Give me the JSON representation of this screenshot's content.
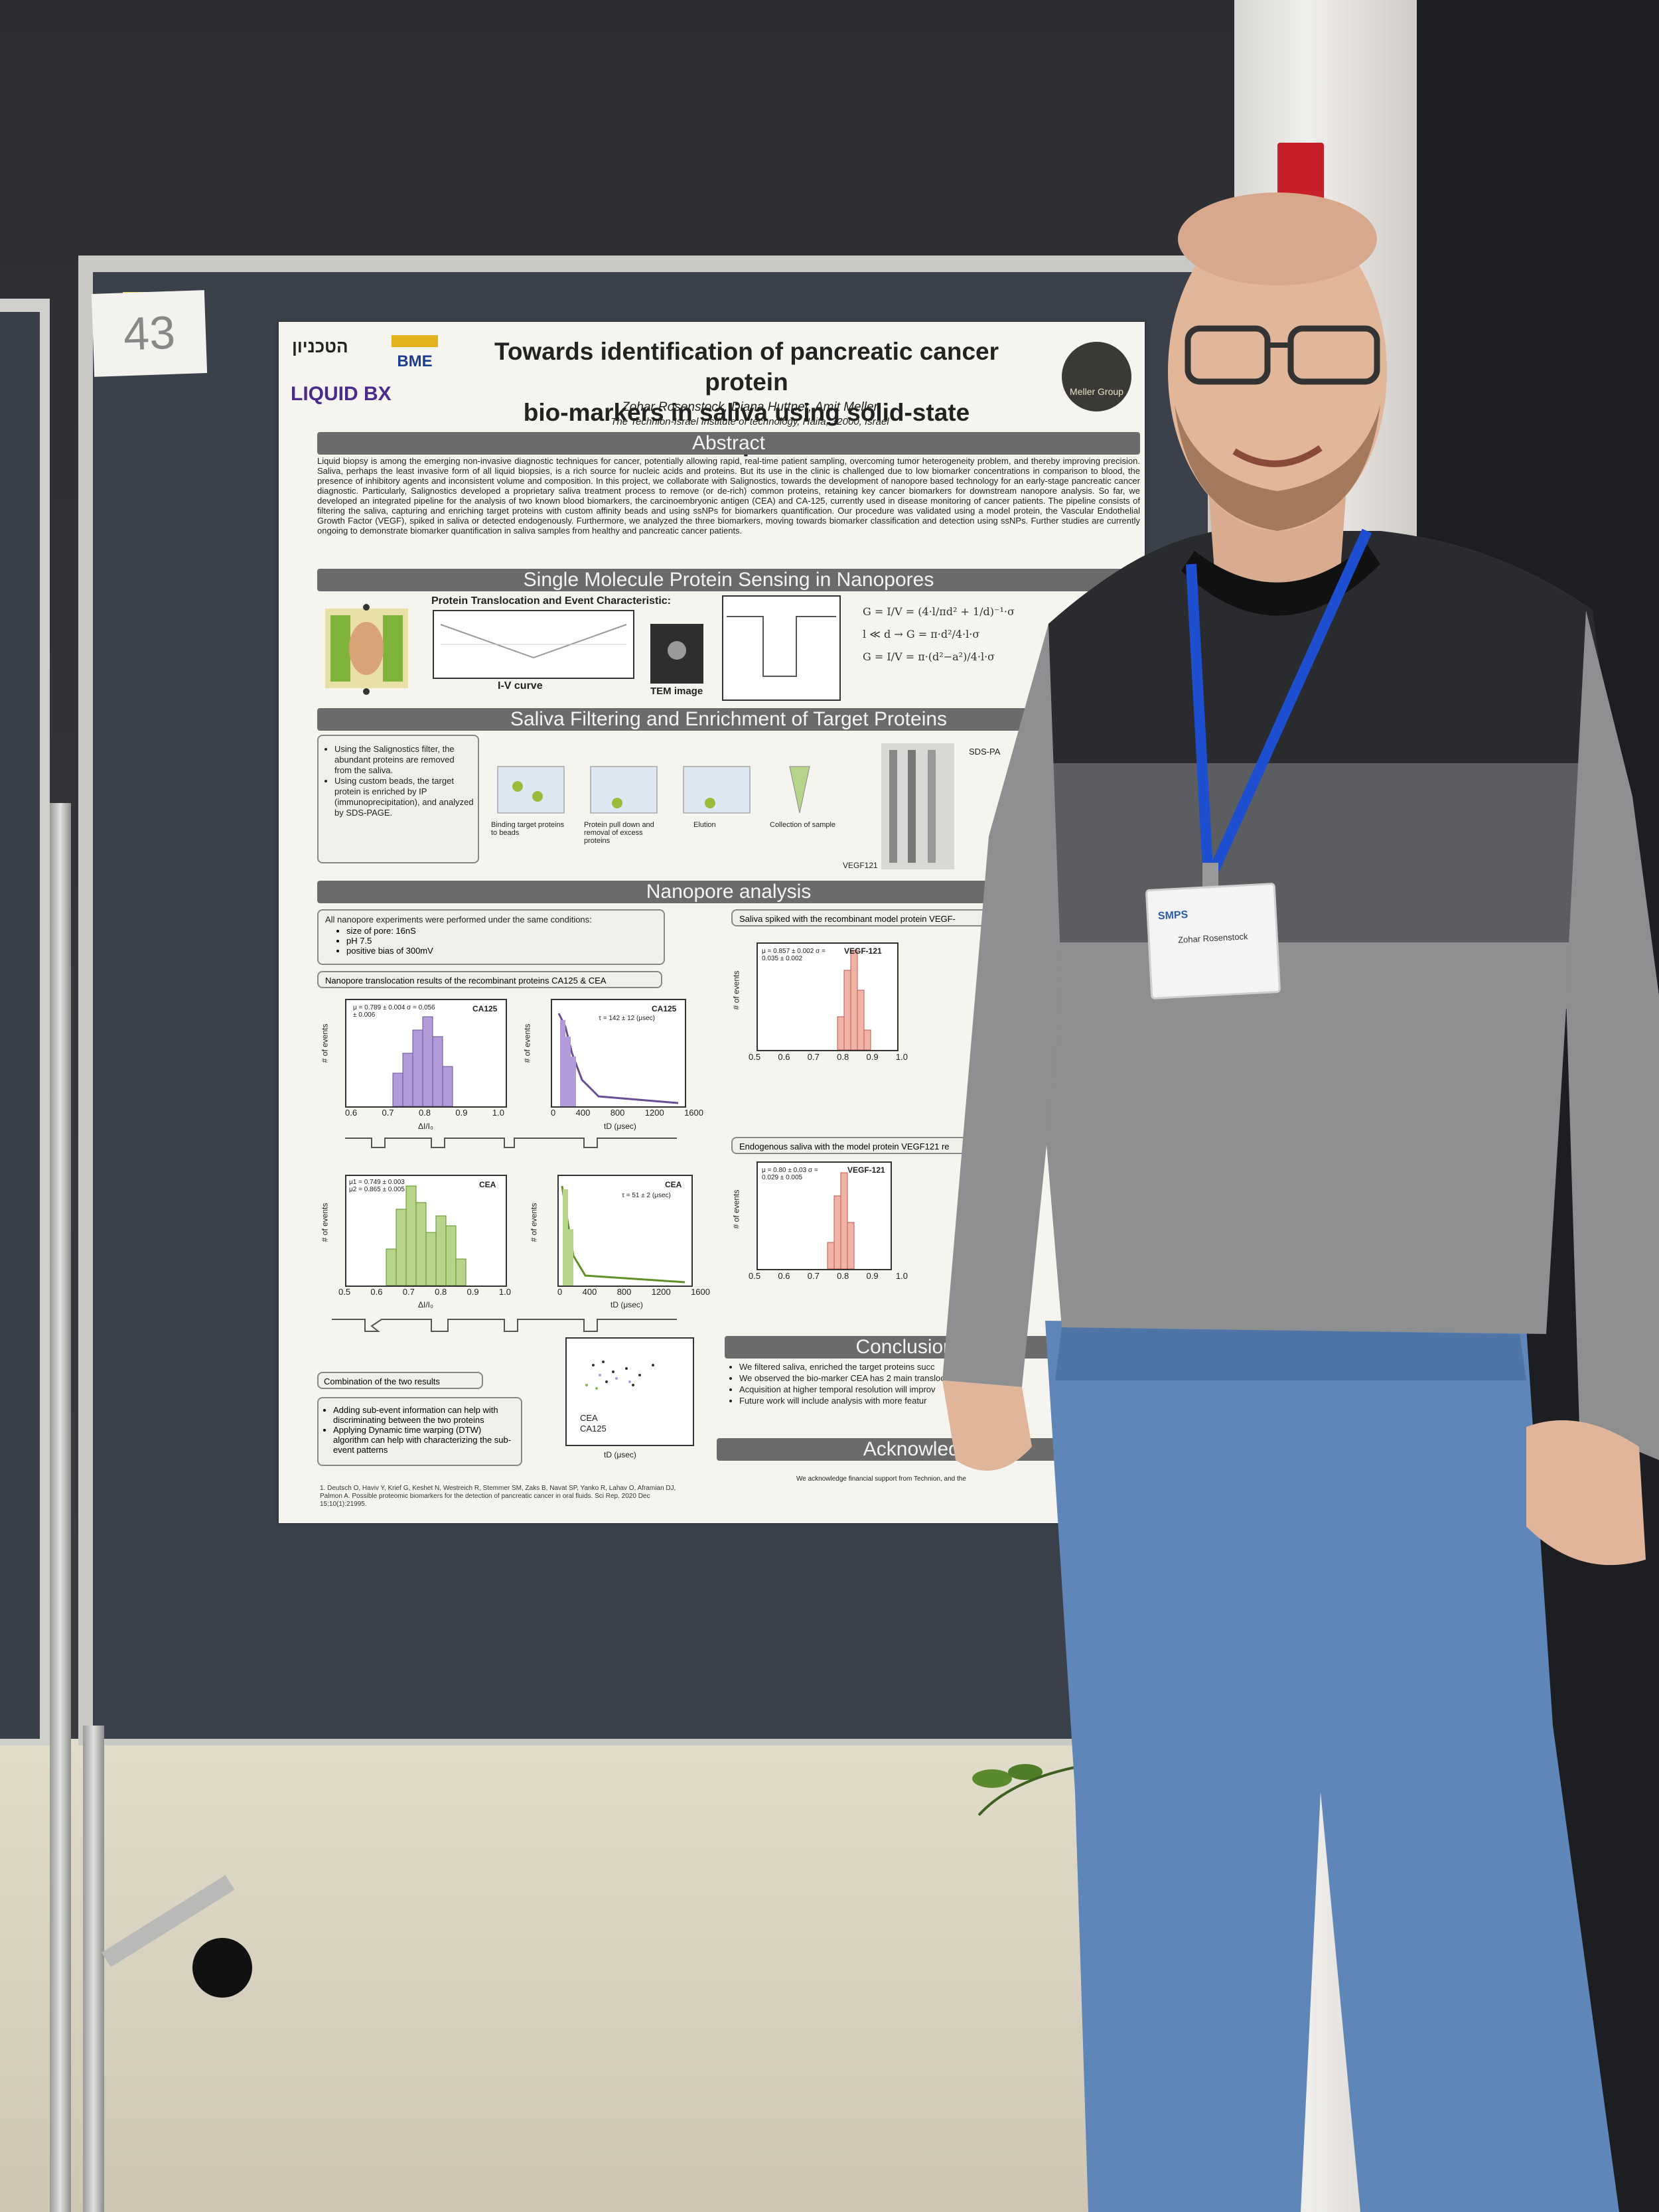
{
  "scene": {
    "booth_number": "43"
  },
  "poster": {
    "logos": {
      "technion": "הטכניון",
      "bme": "BME",
      "liquid_bx": "LIQUID BX",
      "meller": "Meller Group"
    },
    "title_line1": "Towards identification of pancreatic cancer protein",
    "title_line2": "bio-markers in saliva using solid-state nanopores",
    "authors": "Zohar Rosenstock, Diana Huttner, Amit Meller",
    "affiliation": "The Technion-Israel Institute of technology, Haifa, 32000, Israel",
    "sections": {
      "abstract": "Abstract",
      "single_molecule": "Single Molecule Protein Sensing in Nanopores",
      "saliva": "Saliva Filtering and Enrichment of Target Proteins",
      "nanopore": "Nanopore analysis",
      "conclusions": "Conclusions & fu",
      "acknowledgements": "Acknowledge"
    },
    "abstract_text": "Liquid biopsy is among the emerging non-invasive diagnostic techniques for cancer, potentially allowing rapid, real-time patient sampling, overcoming tumor heterogeneity problem, and thereby improving precision. Saliva, perhaps the least invasive form of all liquid biopsies, is a rich source for nucleic acids and proteins. But its use in the clinic is challenged due to low biomarker concentrations in comparison to blood, the presence of inhibitory agents and inconsistent volume and composition. In this project, we collaborate with Salignostics, towards the development of nanopore based technology for an early-stage pancreatic cancer diagnostic. Particularly, Salignostics developed a proprietary saliva treatment process to remove (or de-rich) common proteins, retaining key cancer biomarkers for downstream nanopore analysis. So far, we developed an integrated pipeline for the analysis of two known blood biomarkers, the carcinoembryonic antigen (CEA) and CA-125, currently used in disease monitoring of cancer patients. The pipeline consists of filtering the saliva, capturing and enriching target proteins with custom affinity beads and using ssNPs for biomarkers quantification. Our procedure was validated using a model protein, the Vascular Endothelial Growth Factor (VEGF), spiked in saliva or detected endogenously. Furthermore, we analyzed the three biomarkers, moving towards biomarker classification and detection using ssNPs. Further studies are currently ongoing to demonstrate biomarker quantification in saliva samples from healthy and pancreatic cancer patients.",
    "translocation_heading": "Protein Translocation and Event Characteristic:",
    "iv_curve_label": "I-V curve",
    "tem_label": "TEM image",
    "saliva_bullets": [
      "Using the Salignostics filter, the abundant proteins are removed from the saliva.",
      "Using custom beads, the target protein is enriched by IP (immunoprecipitation), and analyzed by SDS-PAGE."
    ],
    "saliva_steps": [
      "Binding target proteins to beads",
      "Protein pull down and removal of excess proteins",
      "Elution",
      "Collection of sample"
    ],
    "gel_label": "VEGF121",
    "sds_label": "SDS-PA",
    "conditions_heading": "All nanopore experiments were performed under the same conditions:",
    "conditions": [
      "size of pore: 16nS",
      "pH 7.5",
      "positive bias of 300mV"
    ],
    "results_heading": "Nanopore translocation results of the recombinant proteins CA125 & CEA",
    "spiked_heading": "Saliva spiked with the recombinant model protein VEGF-",
    "endogenous_heading": "Endogenous saliva with the model protein VEGF121 re",
    "combination_heading": "Combination of the two results",
    "combination_bullets": [
      "Adding sub-event information can help with discriminating between the two proteins",
      "Applying Dynamic time warping (DTW) algorithm can help with characterizing the sub-event patterns"
    ],
    "conclusions_bullets": [
      "We filtered saliva, enriched the target proteins succ",
      "We observed the bio-marker CEA has 2 main transloc",
      "Acquisition at higher temporal resolution will improv",
      "Future work will include analysis with more featur"
    ],
    "plots": {
      "ca125_hist": {
        "label": "CA125",
        "stats": "μ = 0.789 ± 0.004  σ = 0.056 ± 0.006",
        "ylabel": "# of events",
        "xlabel": "ΔI/I₀",
        "ticks": [
          "0.6",
          "0.7",
          "0.8",
          "0.9",
          "1.0"
        ]
      },
      "ca125_dwell": {
        "label": "CA125",
        "stats": "τ = 142 ± 12 (μsec)",
        "ylabel": "# of events",
        "xlabel": "tD (μsec)",
        "ticks": [
          "0",
          "400",
          "800",
          "1200",
          "1600"
        ]
      },
      "cea_hist": {
        "label": "CEA",
        "stats": "μ1 = 0.749 ± 0.003  μ2 = 0.865 ± 0.005",
        "ylabel": "# of events",
        "xlabel": "ΔI/I₀",
        "ticks": [
          "0.5",
          "0.6",
          "0.7",
          "0.8",
          "0.9",
          "1.0"
        ]
      },
      "cea_dwell": {
        "label": "CEA",
        "stats": "τ = 51 ± 2 (μsec)",
        "ylabel": "# of events",
        "xlabel": "tD (μsec)",
        "ticks": [
          "0",
          "400",
          "800",
          "1200",
          "1600"
        ]
      },
      "vegf_spiked": {
        "label": "VEGF-121",
        "stats": "μ = 0.857 ± 0.002  σ = 0.035 ± 0.002",
        "ylabel": "# of events",
        "ticks": [
          "0.5",
          "0.6",
          "0.7",
          "0.8",
          "0.9",
          "1.0"
        ]
      },
      "vegf_endo": {
        "label": "VEGF-121",
        "stats": "μ = 0.80 ± 0.03  σ = 0.029 ± 0.005",
        "ylabel": "# of events",
        "ticks": [
          "0.5",
          "0.6",
          "0.7",
          "0.8",
          "0.9",
          "1.0"
        ]
      },
      "scatter": {
        "legend1": "CEA",
        "legend2": "CA125",
        "xlabel": "tD (μsec)"
      }
    },
    "references": "1. Deutsch O, Haviv Y, Krief G, Keshet N, Westreich R, Stemmer SM, Zaks B, Navat SP, Yanko R, Lahav O, Aframian DJ, Palmon A. Possible proteomic biomarkers for the detection of pancreatic cancer in oral fluids. Sci Rep. 2020 Dec 15;10(1):21995.",
    "acknowledgement_text": "We acknowledge financial support from Technion, and the"
  },
  "badge": {
    "event": "SMPS",
    "name": "Zohar Rosenstock"
  }
}
